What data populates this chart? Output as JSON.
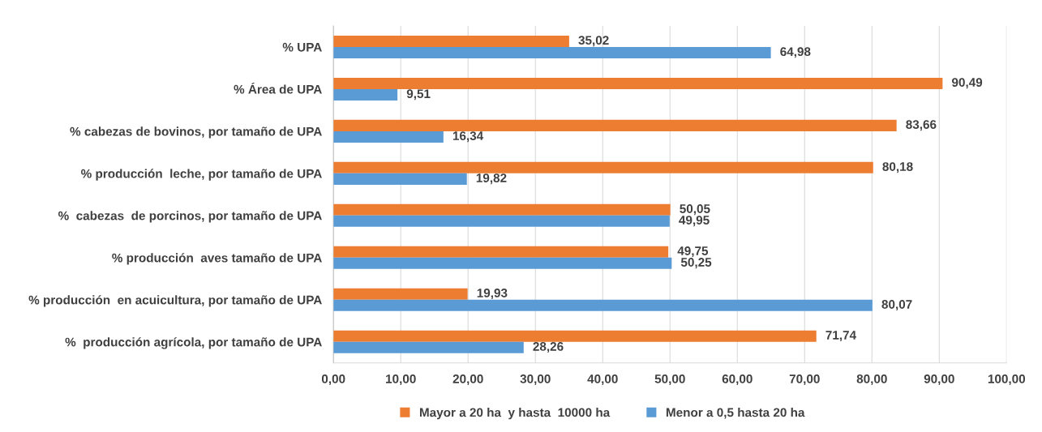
{
  "chart_data": {
    "type": "bar",
    "orientation": "horizontal",
    "categories": [
      "% UPA",
      "% Área de UPA",
      "% cabezas de bovinos, por tamaño de UPA",
      "% producción  leche, por tamaño de UPA",
      "%  cabezas  de porcinos, por tamaño de UPA",
      "% producción  aves tamaño de UPA",
      "% producción  en acuicultura, por tamaño de UPA",
      "%  producción agrícola, por tamaño de UPA"
    ],
    "series": [
      {
        "name": "Mayor a 20 ha  y hasta  10000 ha",
        "color": "#ed7d31",
        "values": [
          35.02,
          90.49,
          83.66,
          80.18,
          50.05,
          49.75,
          19.93,
          71.74
        ],
        "value_labels": [
          "35,02",
          "90,49",
          "83,66",
          "80,18",
          "50,05",
          "49,75",
          "19,93",
          "71,74"
        ]
      },
      {
        "name": "Menor a 0,5 hasta 20 ha",
        "color": "#5b9bd5",
        "values": [
          64.98,
          9.51,
          16.34,
          19.82,
          49.95,
          50.25,
          80.07,
          28.26
        ],
        "value_labels": [
          "64,98",
          "9,51",
          "16,34",
          "19,82",
          "49,95",
          "50,25",
          "80,07",
          "28,26"
        ]
      }
    ],
    "xlim": [
      0,
      100
    ],
    "xticks": [
      {
        "value": 0,
        "label": "0,00"
      },
      {
        "value": 10,
        "label": "10,00"
      },
      {
        "value": 20,
        "label": "20,00"
      },
      {
        "value": 30,
        "label": "30,00"
      },
      {
        "value": 40,
        "label": "40,00"
      },
      {
        "value": 50,
        "label": "50,00"
      },
      {
        "value": 60,
        "label": "60,00"
      },
      {
        "value": 70,
        "label": "70,00"
      },
      {
        "value": 80,
        "label": "80,00"
      },
      {
        "value": 90,
        "label": "90,00"
      },
      {
        "value": 100,
        "label": "100,00"
      }
    ],
    "grid": "x",
    "legend": "bottom"
  }
}
